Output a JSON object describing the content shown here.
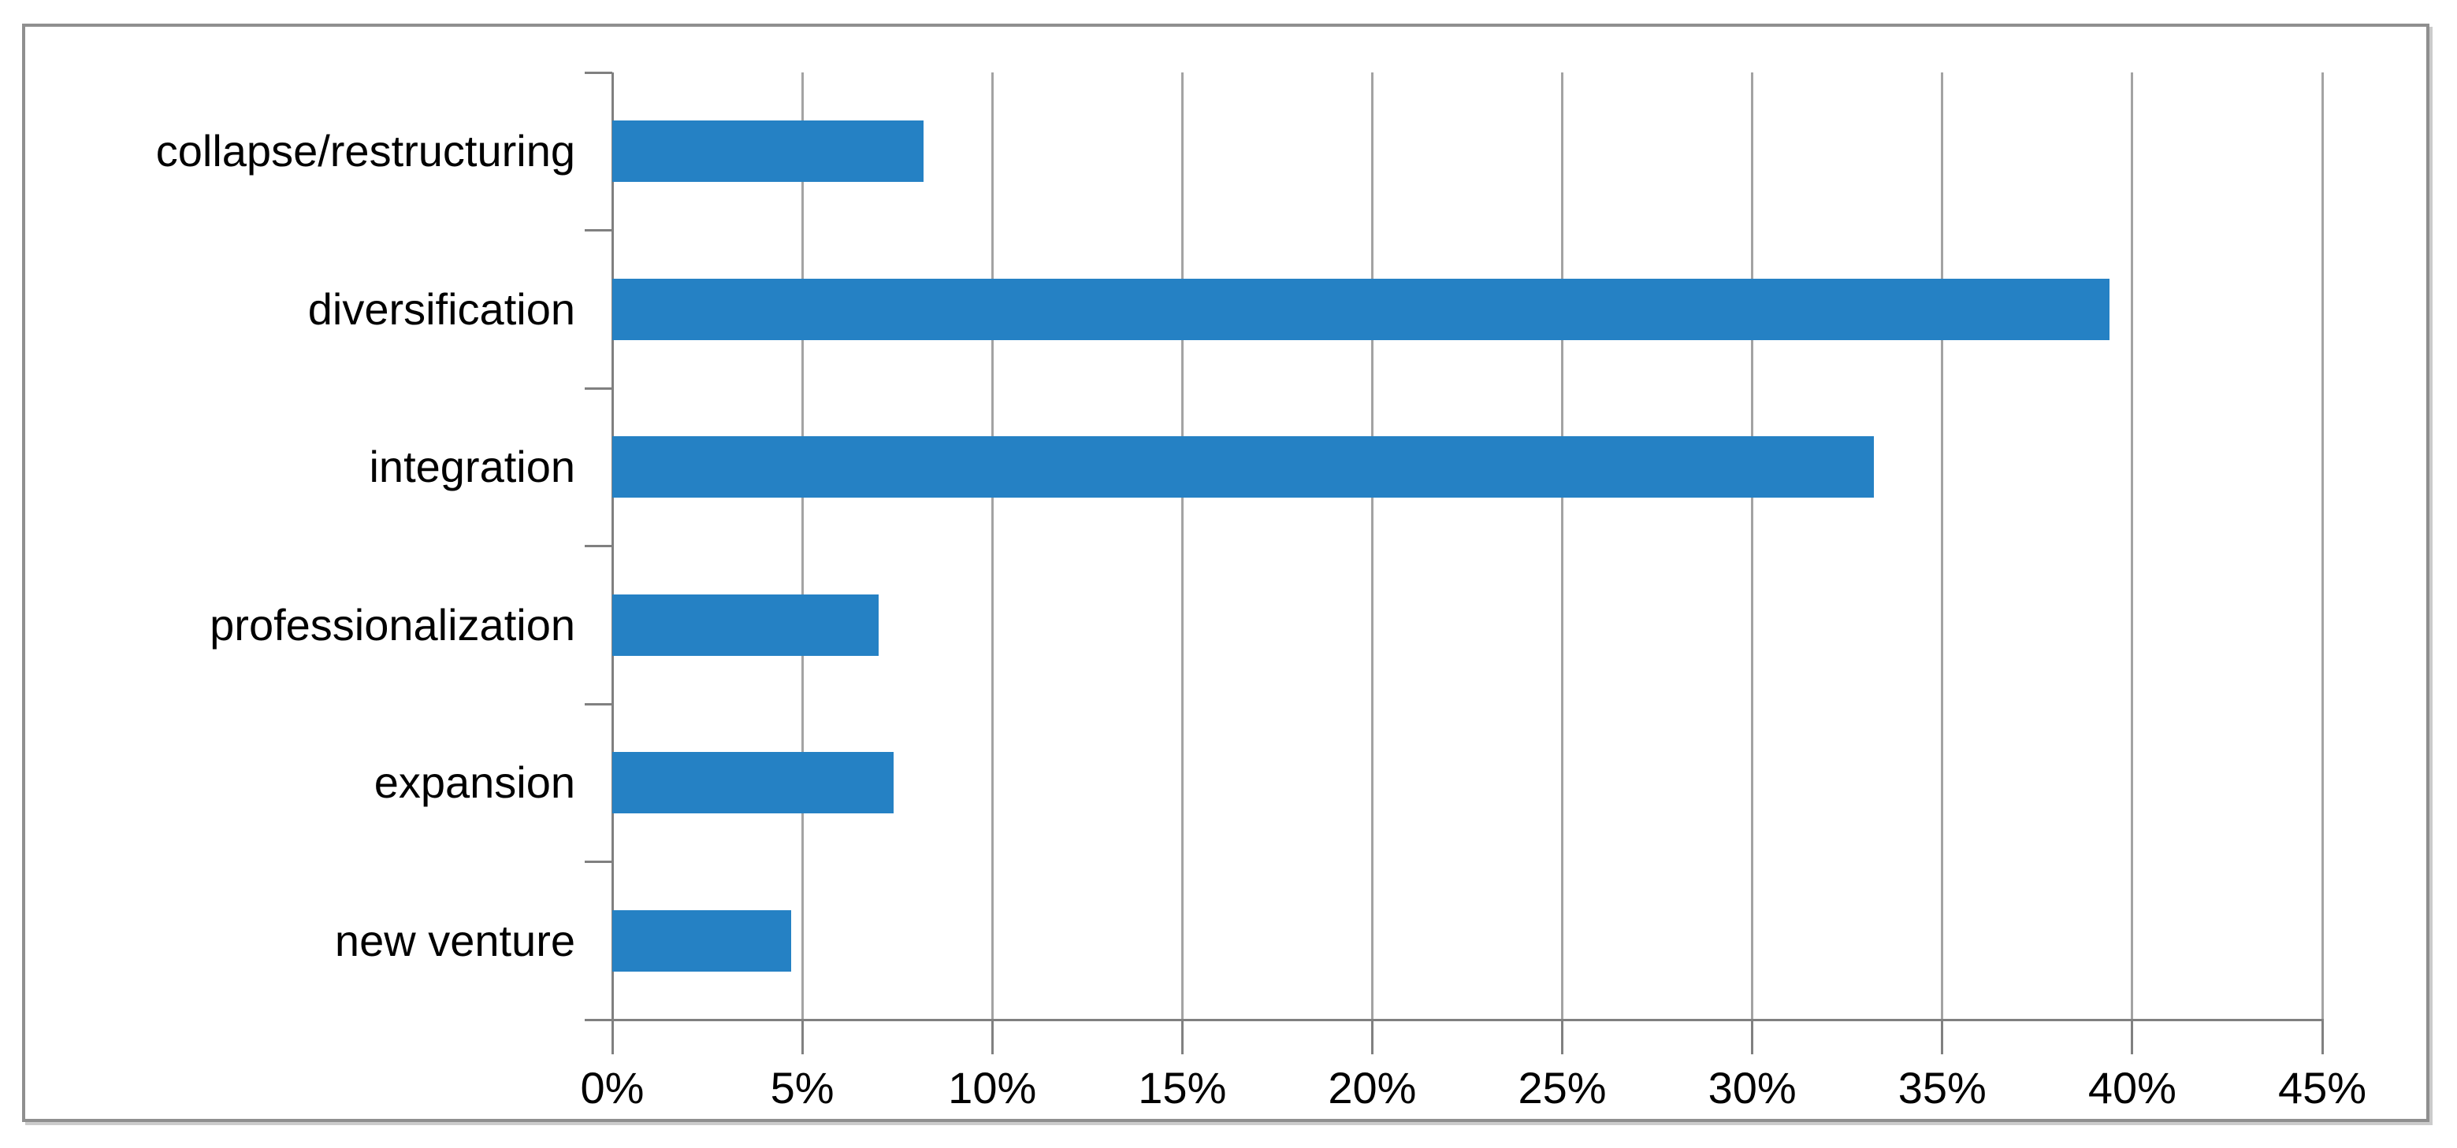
{
  "chart_data": {
    "type": "bar",
    "orientation": "horizontal",
    "title": "",
    "xlabel": "",
    "ylabel": "",
    "categories": [
      "collapse/restructuring",
      "diversification",
      "integration",
      "professionalization",
      "expansion",
      "new venture"
    ],
    "values": [
      8.2,
      39.4,
      33.2,
      7.0,
      7.4,
      4.7
    ],
    "xlim": [
      0,
      45
    ],
    "x_tick_step": 5,
    "x_tick_labels": [
      "0%",
      "5%",
      "10%",
      "15%",
      "20%",
      "25%",
      "30%",
      "35%",
      "40%",
      "45%"
    ],
    "grid": true,
    "legend": false,
    "value_format": "percent",
    "colors": {
      "bar_fill": "#2581c4",
      "gridline": "#a3a3a3",
      "axis": "#808080",
      "label_text": "#000000",
      "frame_border": "#8f8f8f",
      "background": "#ffffff"
    }
  }
}
